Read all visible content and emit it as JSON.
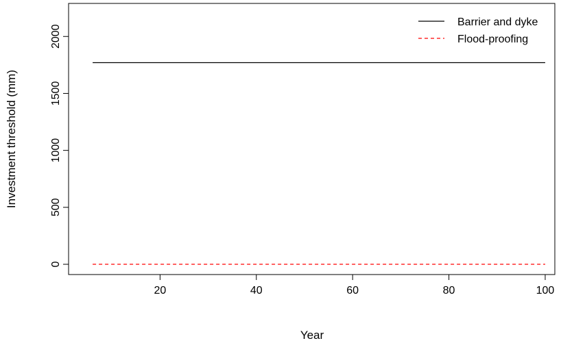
{
  "chart_data": {
    "type": "line",
    "title": "",
    "xlabel": "Year",
    "ylabel": "Investment threshold (mm)",
    "xlim": [
      1,
      102
    ],
    "ylim": [
      -90,
      2290
    ],
    "xticks": [
      20,
      40,
      60,
      80,
      100
    ],
    "yticks": [
      0,
      500,
      1000,
      1500,
      2000
    ],
    "xtick_labels": [
      "20",
      "40",
      "60",
      "80",
      "100"
    ],
    "ytick_labels": [
      "0",
      "500",
      "1000",
      "1500",
      "2000"
    ],
    "grid": false,
    "legend_position": "top-right",
    "series": [
      {
        "name": "Barrier and dyke",
        "color": "#000000",
        "style": "solid",
        "x": [
          6,
          100
        ],
        "y": [
          1770,
          1770
        ]
      },
      {
        "name": "Flood-proofing",
        "color": "#ff0000",
        "style": "dashed",
        "x": [
          6,
          100
        ],
        "y": [
          0,
          0
        ]
      }
    ]
  }
}
